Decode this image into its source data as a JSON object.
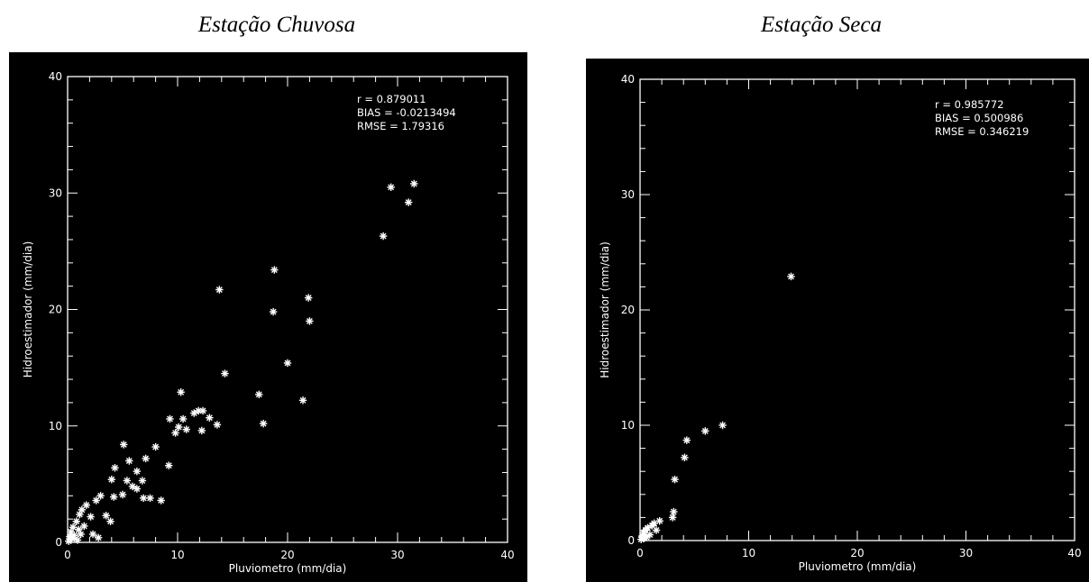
{
  "charts": [
    {
      "panel_title": "Estação Chuvosa",
      "legend": [
        "r = 0.879011",
        "BIAS = -0.0213494",
        "RMSE = 1.79316"
      ]
    },
    {
      "panel_title": "Estação Seca",
      "legend": [
        "r = 0.985772",
        "BIAS = 0.500986",
        "RMSE = 0.346219"
      ]
    }
  ],
  "chart_data": [
    {
      "type": "scatter",
      "title": "Estação Chuvosa",
      "xlabel": "Pluviometro (mm/dia)",
      "ylabel": "Hidroestimador (mm/dia)",
      "xlim": [
        0,
        40
      ],
      "ylim": [
        0,
        40
      ],
      "xticks": [
        "0",
        "10",
        "20",
        "30",
        "40"
      ],
      "yticks": [
        "0",
        "10",
        "20",
        "30",
        "40"
      ],
      "marker": "asterisk",
      "marker_color": "#ffffff",
      "background": "#000000",
      "legend_position": "top-right",
      "grid": false,
      "series": [
        {
          "values": [
            [
              0.1,
              0.1
            ],
            [
              0.2,
              0.5
            ],
            [
              0.3,
              0.9
            ],
            [
              0.4,
              0.3
            ],
            [
              0.5,
              1.3
            ],
            [
              0.6,
              0.6
            ],
            [
              0.8,
              1.8
            ],
            [
              0.9,
              0.2
            ],
            [
              1.0,
              1.1
            ],
            [
              1.1,
              2.4
            ],
            [
              1.2,
              0.7
            ],
            [
              1.3,
              2.8
            ],
            [
              1.5,
              1.4
            ],
            [
              1.7,
              3.2
            ],
            [
              2.1,
              2.2
            ],
            [
              2.3,
              0.7
            ],
            [
              2.6,
              3.6
            ],
            [
              2.8,
              0.4
            ],
            [
              3.0,
              4.0
            ],
            [
              3.5,
              2.3
            ],
            [
              3.9,
              1.8
            ],
            [
              4.0,
              5.4
            ],
            [
              4.2,
              3.9
            ],
            [
              4.3,
              6.4
            ],
            [
              5.0,
              4.1
            ],
            [
              5.1,
              8.4
            ],
            [
              5.4,
              5.3
            ],
            [
              5.6,
              7.0
            ],
            [
              5.9,
              4.8
            ],
            [
              6.3,
              4.6
            ],
            [
              6.3,
              6.1
            ],
            [
              6.8,
              5.3
            ],
            [
              6.9,
              3.8
            ],
            [
              7.1,
              7.2
            ],
            [
              7.5,
              3.8
            ],
            [
              8.0,
              8.2
            ],
            [
              8.5,
              3.6
            ],
            [
              9.2,
              6.6
            ],
            [
              9.3,
              10.6
            ],
            [
              9.8,
              9.4
            ],
            [
              10.1,
              9.9
            ],
            [
              10.3,
              12.9
            ],
            [
              10.5,
              10.6
            ],
            [
              10.8,
              9.7
            ],
            [
              11.5,
              11.1
            ],
            [
              11.9,
              11.3
            ],
            [
              12.2,
              9.6
            ],
            [
              12.3,
              11.3
            ],
            [
              12.9,
              10.7
            ],
            [
              13.6,
              10.1
            ],
            [
              13.8,
              21.7
            ],
            [
              14.3,
              14.5
            ],
            [
              17.4,
              12.7
            ],
            [
              17.8,
              10.2
            ],
            [
              18.7,
              19.8
            ],
            [
              18.8,
              23.4
            ],
            [
              20.0,
              15.4
            ],
            [
              21.4,
              12.2
            ],
            [
              21.9,
              21.0
            ],
            [
              22.0,
              19.0
            ],
            [
              28.7,
              26.3
            ],
            [
              29.4,
              30.5
            ],
            [
              31.0,
              29.2
            ],
            [
              31.5,
              30.8
            ]
          ]
        }
      ]
    },
    {
      "type": "scatter",
      "title": "Estação Seca",
      "xlabel": "Pluviometro (mm/dia)",
      "ylabel": "Hidroestimador (mm/dia)",
      "xlim": [
        0,
        40
      ],
      "ylim": [
        0,
        40
      ],
      "xticks": [
        "0",
        "10",
        "20",
        "30",
        "40"
      ],
      "yticks": [
        "0",
        "10",
        "20",
        "30",
        "40"
      ],
      "marker": "asterisk",
      "marker_color": "#ffffff",
      "background": "#000000",
      "legend_position": "top-right",
      "grid": false,
      "series": [
        {
          "values": [
            [
              0.1,
              0.1
            ],
            [
              0.2,
              0.4
            ],
            [
              0.3,
              0.7
            ],
            [
              0.4,
              0.2
            ],
            [
              0.5,
              0.9
            ],
            [
              0.6,
              0.3
            ],
            [
              0.7,
              1.1
            ],
            [
              0.9,
              0.5
            ],
            [
              1.1,
              1.3
            ],
            [
              1.3,
              1.5
            ],
            [
              1.5,
              0.9
            ],
            [
              1.8,
              1.7
            ],
            [
              3.0,
              2.0
            ],
            [
              3.1,
              2.5
            ],
            [
              3.2,
              5.3
            ],
            [
              4.1,
              7.2
            ],
            [
              4.3,
              8.7
            ],
            [
              6.0,
              9.5
            ],
            [
              7.6,
              10.0
            ],
            [
              13.9,
              22.9
            ]
          ]
        }
      ]
    }
  ]
}
